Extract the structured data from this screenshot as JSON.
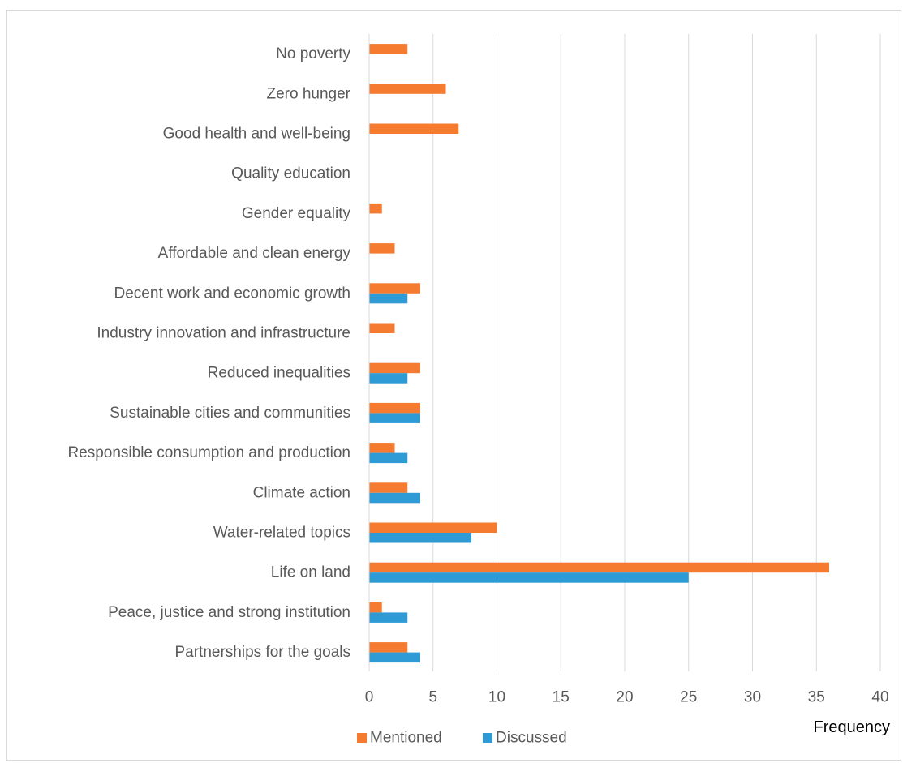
{
  "chart_data": {
    "type": "bar",
    "orientation": "horizontal",
    "categories": [
      "No poverty",
      "Zero hunger",
      "Good health and well-being",
      "Quality education",
      "Gender equality",
      "Affordable and clean energy",
      "Decent work and economic growth",
      "Industry innovation and infrastructure",
      "Reduced inequalities",
      "Sustainable cities and communities",
      "Responsible consumption and production",
      "Climate action",
      "Water-related topics",
      "Life on land",
      "Peace, justice and strong institution",
      "Partnerships for the goals"
    ],
    "series": [
      {
        "name": "Mentioned",
        "color": "#F47B30",
        "values": [
          3,
          6,
          7,
          0,
          1,
          2,
          4,
          2,
          4,
          4,
          2,
          3,
          10,
          36,
          1,
          3
        ]
      },
      {
        "name": "Discussed",
        "color": "#2E9BD6",
        "values": [
          0,
          0,
          0,
          0,
          0,
          0,
          3,
          0,
          3,
          4,
          3,
          4,
          8,
          25,
          3,
          4
        ]
      }
    ],
    "xlabel": "Frequency",
    "ylabel": "",
    "xlim": [
      0,
      40
    ],
    "xticks": [
      0,
      5,
      10,
      15,
      20,
      25,
      30,
      35,
      40
    ],
    "grid": true,
    "legend_position": "bottom-left"
  }
}
